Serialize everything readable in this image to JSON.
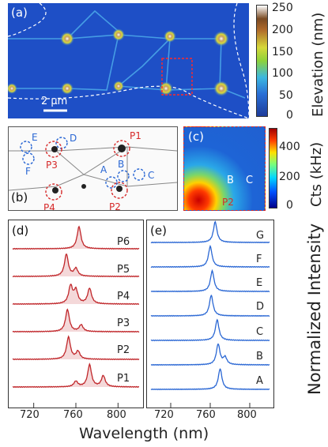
{
  "panels": {
    "a": {
      "label": "(a)",
      "scale_bar": "2 μm",
      "colorbar": {
        "ticks": [
          "250",
          "200",
          "150",
          "100",
          "50",
          "0"
        ],
        "label": "Elevation (nm)"
      }
    },
    "b": {
      "label": "(b)",
      "markers": [
        {
          "name": "E",
          "color": "blue"
        },
        {
          "name": "D",
          "color": "blue"
        },
        {
          "name": "F",
          "color": "blue"
        },
        {
          "name": "P3",
          "color": "red"
        },
        {
          "name": "P1",
          "color": "red"
        },
        {
          "name": "A",
          "color": "blue"
        },
        {
          "name": "B",
          "color": "blue"
        },
        {
          "name": "C",
          "color": "blue"
        },
        {
          "name": "P4",
          "color": "red"
        },
        {
          "name": "P2",
          "color": "red"
        }
      ]
    },
    "c": {
      "label": "(c)",
      "markers": [
        "B",
        "C",
        "P2"
      ],
      "colorbar": {
        "ticks": [
          "400",
          "200",
          "0"
        ],
        "label": "Cts (kHz)"
      }
    },
    "d": {
      "label": "(d)",
      "spectra": [
        "P6",
        "P5",
        "P4",
        "P3",
        "P2",
        "P1"
      ],
      "color": "#c0262a"
    },
    "e": {
      "label": "(e)",
      "spectra": [
        "G",
        "F",
        "E",
        "D",
        "C",
        "B",
        "A"
      ],
      "color": "#2a67d4"
    },
    "xaxis": {
      "ticks": [
        "720",
        "760",
        "800"
      ],
      "label": "Wavelength (nm)"
    },
    "yaxis_right": {
      "label": "Normalized Intensity"
    }
  },
  "chart_data": [
    {
      "type": "line",
      "title": "(d)",
      "xlabel": "Wavelength (nm)",
      "xlim": [
        700,
        820
      ],
      "series": [
        {
          "name": "P6",
          "peaks": [
            [
              763,
              1.0
            ]
          ]
        },
        {
          "name": "P5",
          "peaks": [
            [
              751,
              1.0
            ],
            [
              760,
              0.35
            ]
          ]
        },
        {
          "name": "P4",
          "peaks": [
            [
              755,
              0.8
            ],
            [
              760,
              0.6
            ],
            [
              773,
              0.7
            ]
          ]
        },
        {
          "name": "P3",
          "peaks": [
            [
              752,
              1.0
            ],
            [
              765,
              0.3
            ]
          ]
        },
        {
          "name": "P2",
          "peaks": [
            [
              753,
              1.0
            ],
            [
              762,
              0.35
            ]
          ]
        },
        {
          "name": "P1",
          "peaks": [
            [
              773,
              1.0
            ],
            [
              786,
              0.5
            ],
            [
              760,
              0.25
            ]
          ]
        }
      ]
    },
    {
      "type": "line",
      "title": "(e)",
      "xlabel": "Wavelength (nm)",
      "ylabel": "Normalized Intensity",
      "xlim": [
        700,
        820
      ],
      "series": [
        {
          "name": "G",
          "peaks": [
            [
              765,
              1.0
            ]
          ]
        },
        {
          "name": "F",
          "peaks": [
            [
              760,
              1.0
            ]
          ]
        },
        {
          "name": "E",
          "peaks": [
            [
              762,
              1.0
            ]
          ]
        },
        {
          "name": "D",
          "peaks": [
            [
              761,
              1.0
            ]
          ]
        },
        {
          "name": "C",
          "peaks": [
            [
              767,
              1.0
            ]
          ]
        },
        {
          "name": "B",
          "peaks": [
            [
              768,
              1.0
            ],
            [
              775,
              0.35
            ]
          ]
        },
        {
          "name": "A",
          "peaks": [
            [
              770,
              1.0
            ]
          ]
        }
      ]
    }
  ]
}
